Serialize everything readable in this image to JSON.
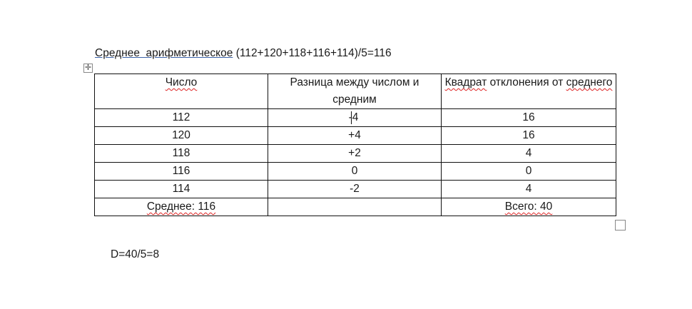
{
  "title": {
    "label": "Среднее  арифметическое",
    "formula": "(112+120+118+116+114)/5=116"
  },
  "table": {
    "headers": [
      "Число",
      "Разница между числом и средним",
      "Квадрат отклонения от среднего"
    ],
    "rows": [
      [
        "112",
        "-4",
        "16"
      ],
      [
        "120",
        "+4",
        "16"
      ],
      [
        "118",
        "+2",
        "4"
      ],
      [
        "116",
        "0",
        "0"
      ],
      [
        "114",
        "-2",
        "4"
      ]
    ],
    "footer": [
      "Среднее: 116",
      "",
      "Всего: 40"
    ]
  },
  "result": "D=40/5=8"
}
